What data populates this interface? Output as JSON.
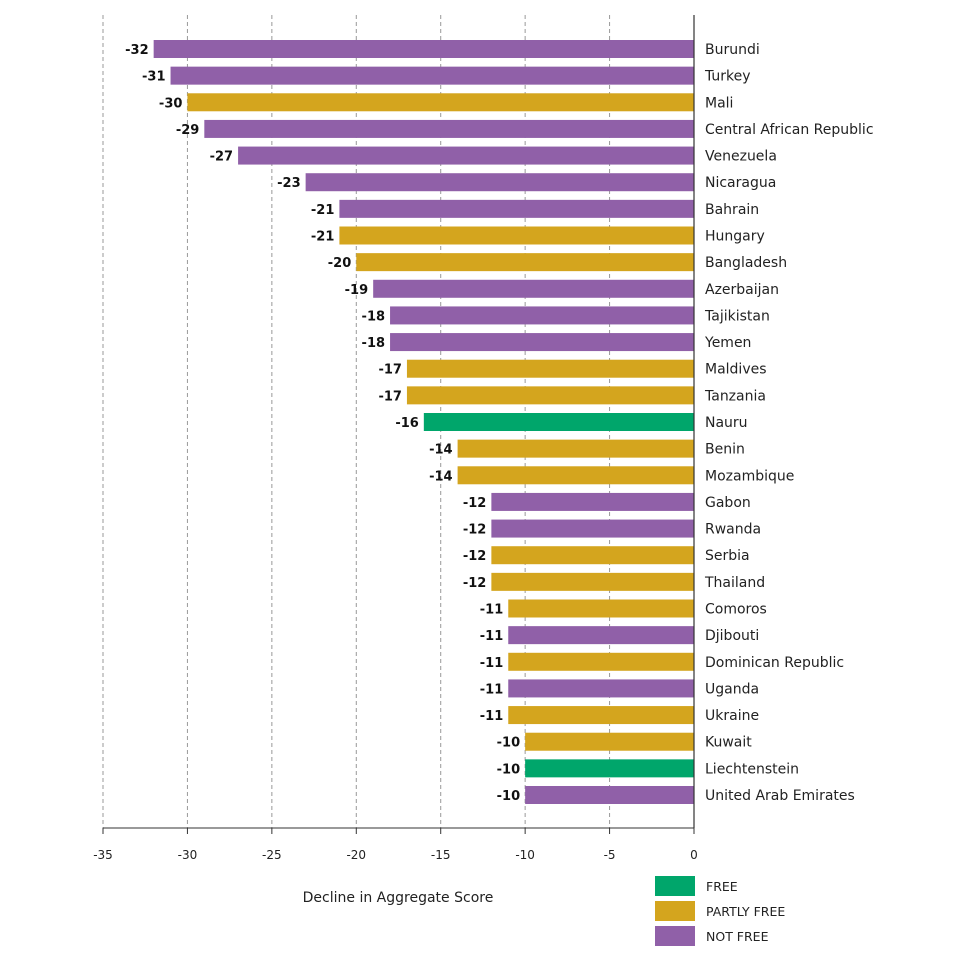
{
  "chart_data": {
    "type": "bar",
    "orientation": "horizontal",
    "xlabel": "Decline in Aggregate Score",
    "xlim": [
      -35,
      0
    ],
    "xticks": [
      -35,
      -30,
      -25,
      -20,
      -15,
      -10,
      -5,
      0
    ],
    "grid": true,
    "legend_position": "bottom-right",
    "legend": [
      {
        "key": "free",
        "label": "FREE",
        "color": "#00a66b"
      },
      {
        "key": "partly",
        "label": "PARTLY FREE",
        "color": "#d4a51e"
      },
      {
        "key": "not",
        "label": "NOT FREE",
        "color": "#9060a8"
      }
    ],
    "bars": [
      {
        "country": "Burundi",
        "value": -32,
        "status": "not"
      },
      {
        "country": "Turkey",
        "value": -31,
        "status": "not"
      },
      {
        "country": "Mali",
        "value": -30,
        "status": "partly"
      },
      {
        "country": "Central African Republic",
        "value": -29,
        "status": "not"
      },
      {
        "country": "Venezuela",
        "value": -27,
        "status": "not"
      },
      {
        "country": "Nicaragua",
        "value": -23,
        "status": "not"
      },
      {
        "country": "Bahrain",
        "value": -21,
        "status": "not"
      },
      {
        "country": "Hungary",
        "value": -21,
        "status": "partly"
      },
      {
        "country": "Bangladesh",
        "value": -20,
        "status": "partly"
      },
      {
        "country": "Azerbaijan",
        "value": -19,
        "status": "not"
      },
      {
        "country": "Tajikistan",
        "value": -18,
        "status": "not"
      },
      {
        "country": "Yemen",
        "value": -18,
        "status": "not"
      },
      {
        "country": "Maldives",
        "value": -17,
        "status": "partly"
      },
      {
        "country": "Tanzania",
        "value": -17,
        "status": "partly"
      },
      {
        "country": "Nauru",
        "value": -16,
        "status": "free"
      },
      {
        "country": "Benin",
        "value": -14,
        "status": "partly"
      },
      {
        "country": "Mozambique",
        "value": -14,
        "status": "partly"
      },
      {
        "country": "Gabon",
        "value": -12,
        "status": "not"
      },
      {
        "country": "Rwanda",
        "value": -12,
        "status": "not"
      },
      {
        "country": "Serbia",
        "value": -12,
        "status": "partly"
      },
      {
        "country": "Thailand",
        "value": -12,
        "status": "partly"
      },
      {
        "country": "Comoros",
        "value": -11,
        "status": "partly"
      },
      {
        "country": "Djibouti",
        "value": -11,
        "status": "not"
      },
      {
        "country": "Dominican Republic",
        "value": -11,
        "status": "partly"
      },
      {
        "country": "Uganda",
        "value": -11,
        "status": "not"
      },
      {
        "country": "Ukraine",
        "value": -11,
        "status": "partly"
      },
      {
        "country": "Kuwait",
        "value": -10,
        "status": "partly"
      },
      {
        "country": "Liechtenstein",
        "value": -10,
        "status": "free"
      },
      {
        "country": "United Arab Emirates",
        "value": -10,
        "status": "not"
      }
    ]
  }
}
